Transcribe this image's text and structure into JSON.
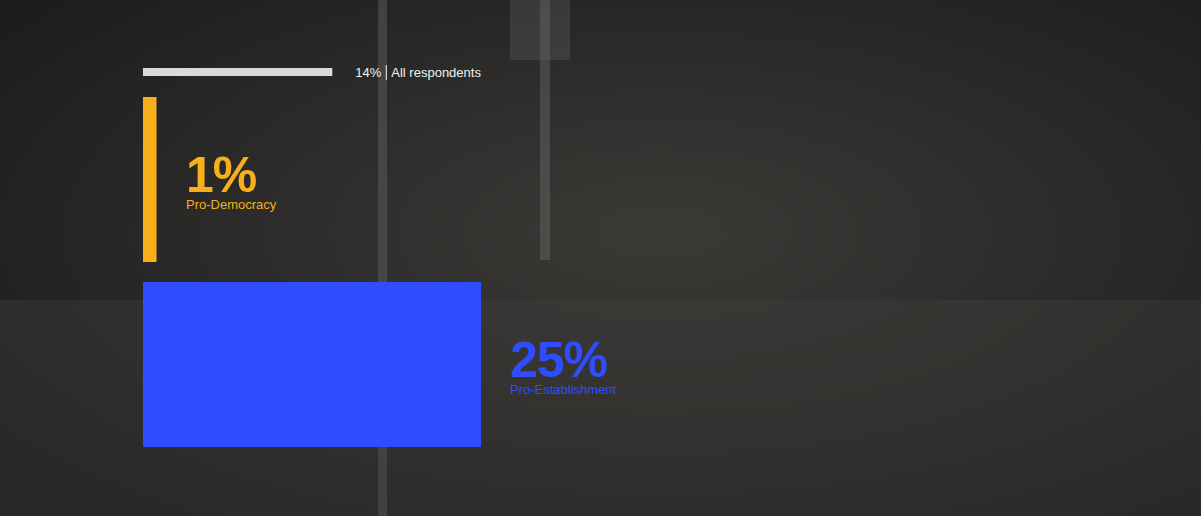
{
  "chart_data": {
    "type": "bar",
    "orientation": "horizontal",
    "categories": [
      "All respondents",
      "Pro-Democracy",
      "Pro-Establishment"
    ],
    "values": [
      14,
      1,
      25
    ],
    "value_labels": [
      "14%",
      "1%",
      "25%"
    ],
    "colors": [
      "#d9d9d9",
      "#f5b01c",
      "#2f4dff"
    ],
    "xlim": [
      0,
      25
    ],
    "data_labels": true,
    "tick_labels": false,
    "grid": false
  }
}
